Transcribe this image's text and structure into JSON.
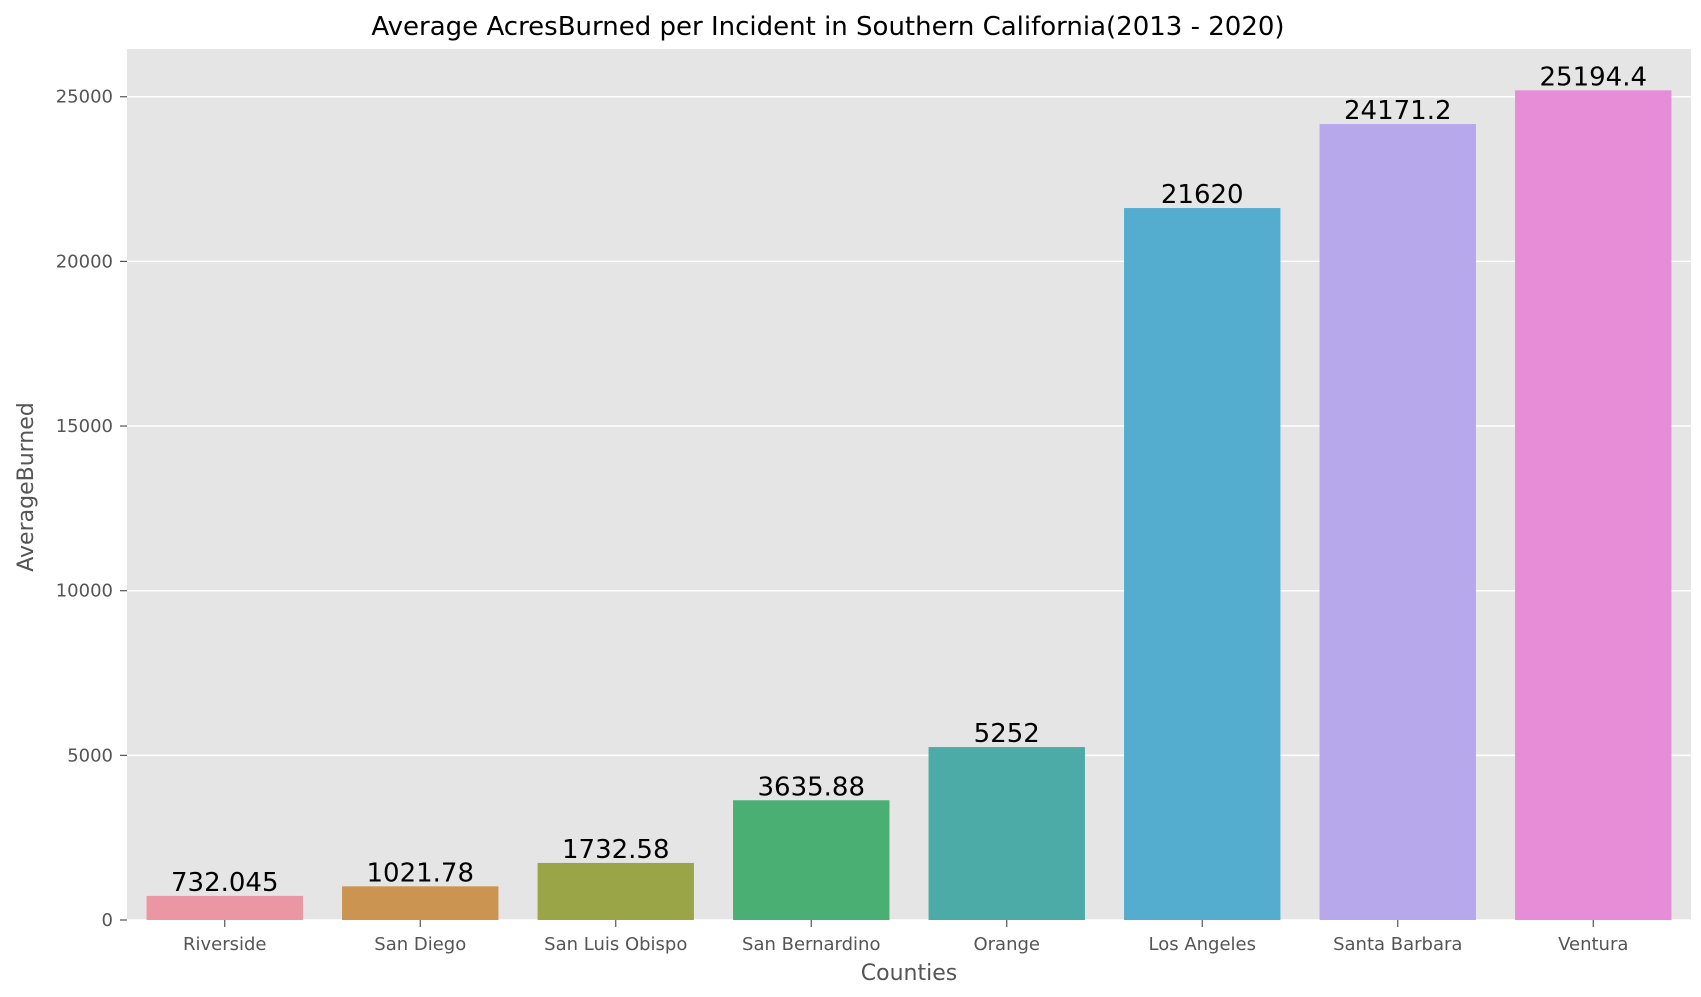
{
  "chart_data": {
    "type": "bar",
    "title": "Average AcresBurned per Incident in Southern California(2013 - 2020)",
    "xlabel": "Counties",
    "ylabel": "AverageBurned",
    "categories": [
      "Riverside",
      "San Diego",
      "San Luis Obispo",
      "San Bernardino",
      "Orange",
      "Los Angeles",
      "Santa Barbara",
      "Ventura"
    ],
    "values": [
      732.045,
      1021.78,
      1732.58,
      3635.88,
      5252,
      21620,
      24171.2,
      25194.4
    ],
    "data_labels": [
      "732.045",
      "1021.78",
      "1732.58",
      "3635.88",
      "5252",
      "21620",
      "24171.2",
      "25194.4"
    ],
    "bar_colors": [
      "#ea96a3",
      "#cb9450",
      "#9aa548",
      "#49af72",
      "#4caba6",
      "#54acce",
      "#b7a8ec",
      "#e78cd7"
    ],
    "ylim": [
      0,
      26450
    ],
    "yticks": [
      0,
      5000,
      10000,
      15000,
      20000,
      25000
    ],
    "ytick_labels": [
      "0",
      "5000",
      "10000",
      "15000",
      "20000",
      "25000"
    ],
    "grid": true,
    "background": "#e5e5e5",
    "gridline_color": "#ffffff"
  }
}
